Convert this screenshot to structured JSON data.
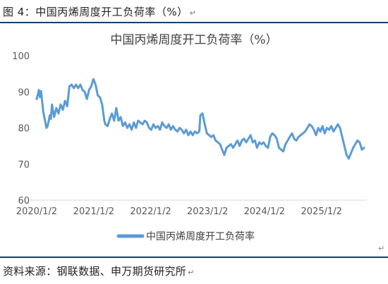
{
  "caption": "图 4：中国丙烯周度开工负荷率（%）",
  "paragraph_mark": "↵",
  "source": "资料来源：钢联数据、申万期货研究所",
  "chart_data": {
    "type": "line",
    "title": "中国丙烯周度开工负荷率（%）",
    "xlabel": "",
    "ylabel": "",
    "ylim": [
      60,
      100
    ],
    "yticks": [
      60,
      70,
      80,
      90,
      100
    ],
    "xticks": [
      {
        "label": "2020/1/2",
        "date": "2020-01-02"
      },
      {
        "label": "2021/1/2",
        "date": "2021-01-02"
      },
      {
        "label": "2022/1/2",
        "date": "2022-01-02"
      },
      {
        "label": "2023/1/2",
        "date": "2023-01-02"
      },
      {
        "label": "2024/1/2",
        "date": "2024-01-02"
      },
      {
        "label": "2025/1/2",
        "date": "2025-01-02"
      }
    ],
    "xlim": [
      "2020-01-02",
      "2025-10-20"
    ],
    "grid": false,
    "legend": "bottom",
    "color": "#5b9bd5",
    "series": [
      {
        "name": "中国丙烯周度开工负荷率",
        "points": [
          [
            "2020-01-02",
            88.0
          ],
          [
            "2020-01-16",
            90.5
          ],
          [
            "2020-01-23",
            88.5
          ],
          [
            "2020-01-30",
            90.2
          ],
          [
            "2020-02-13",
            84.5
          ],
          [
            "2020-02-20",
            83.0
          ],
          [
            "2020-03-05",
            80.0
          ],
          [
            "2020-03-12",
            80.5
          ],
          [
            "2020-03-26",
            83.5
          ],
          [
            "2020-04-02",
            82.5
          ],
          [
            "2020-04-09",
            86.5
          ],
          [
            "2020-04-23",
            83.0
          ],
          [
            "2020-05-07",
            85.5
          ],
          [
            "2020-05-21",
            84.0
          ],
          [
            "2020-06-04",
            86.5
          ],
          [
            "2020-06-18",
            85.0
          ],
          [
            "2020-07-02",
            87.5
          ],
          [
            "2020-07-16",
            86.0
          ],
          [
            "2020-07-30",
            91.5
          ],
          [
            "2020-08-13",
            92.0
          ],
          [
            "2020-08-27",
            91.0
          ],
          [
            "2020-09-10",
            92.0
          ],
          [
            "2020-09-24",
            91.0
          ],
          [
            "2020-10-08",
            92.0
          ],
          [
            "2020-10-22",
            90.5
          ],
          [
            "2020-11-05",
            90.0
          ],
          [
            "2020-11-19",
            88.0
          ],
          [
            "2020-12-03",
            90.5
          ],
          [
            "2020-12-17",
            91.5
          ],
          [
            "2020-12-31",
            93.5
          ],
          [
            "2021-01-14",
            92.0
          ],
          [
            "2021-01-28",
            89.0
          ],
          [
            "2021-02-11",
            88.5
          ],
          [
            "2021-02-25",
            86.5
          ],
          [
            "2021-03-11",
            82.0
          ],
          [
            "2021-03-18",
            81.0
          ],
          [
            "2021-04-01",
            80.5
          ],
          [
            "2021-04-15",
            82.5
          ],
          [
            "2021-04-29",
            84.0
          ],
          [
            "2021-05-13",
            82.0
          ],
          [
            "2021-05-27",
            85.5
          ],
          [
            "2021-06-10",
            82.0
          ],
          [
            "2021-06-24",
            83.0
          ],
          [
            "2021-07-08",
            80.5
          ],
          [
            "2021-07-22",
            81.5
          ],
          [
            "2021-08-05",
            80.0
          ],
          [
            "2021-08-19",
            81.0
          ],
          [
            "2021-09-02",
            79.5
          ],
          [
            "2021-09-16",
            81.5
          ],
          [
            "2021-09-30",
            80.0
          ],
          [
            "2021-10-14",
            82.0
          ],
          [
            "2021-10-28",
            81.5
          ],
          [
            "2021-11-11",
            81.0
          ],
          [
            "2021-11-25",
            82.0
          ],
          [
            "2021-12-09",
            81.5
          ],
          [
            "2021-12-23",
            80.0
          ],
          [
            "2022-01-06",
            79.5
          ],
          [
            "2022-01-20",
            81.0
          ],
          [
            "2022-02-03",
            80.0
          ],
          [
            "2022-02-17",
            80.5
          ],
          [
            "2022-03-03",
            79.5
          ],
          [
            "2022-03-17",
            81.5
          ],
          [
            "2022-03-31",
            80.5
          ],
          [
            "2022-04-14",
            80.0
          ],
          [
            "2022-04-28",
            81.0
          ],
          [
            "2022-05-12",
            79.5
          ],
          [
            "2022-05-26",
            80.5
          ],
          [
            "2022-06-09",
            79.5
          ],
          [
            "2022-06-23",
            79.0
          ],
          [
            "2022-07-07",
            80.0
          ],
          [
            "2022-07-21",
            79.5
          ],
          [
            "2022-08-04",
            78.5
          ],
          [
            "2022-08-18",
            79.5
          ],
          [
            "2022-09-01",
            78.0
          ],
          [
            "2022-09-15",
            79.0
          ],
          [
            "2022-09-29",
            78.0
          ],
          [
            "2022-10-13",
            79.0
          ],
          [
            "2022-10-27",
            78.5
          ],
          [
            "2022-11-10",
            79.0
          ],
          [
            "2022-11-17",
            83.5
          ],
          [
            "2022-12-01",
            84.0
          ],
          [
            "2022-12-15",
            81.0
          ],
          [
            "2022-12-29",
            78.5
          ],
          [
            "2023-01-12",
            78.0
          ],
          [
            "2023-01-26",
            77.5
          ],
          [
            "2023-02-09",
            78.0
          ],
          [
            "2023-02-23",
            76.5
          ],
          [
            "2023-03-09",
            76.0
          ],
          [
            "2023-03-23",
            75.5
          ],
          [
            "2023-04-06",
            74.0
          ],
          [
            "2023-04-20",
            72.5
          ],
          [
            "2023-05-04",
            74.5
          ],
          [
            "2023-05-18",
            75.0
          ],
          [
            "2023-06-01",
            75.5
          ],
          [
            "2023-06-15",
            74.5
          ],
          [
            "2023-06-29",
            75.5
          ],
          [
            "2023-07-13",
            76.5
          ],
          [
            "2023-07-27",
            75.0
          ],
          [
            "2023-08-10",
            76.5
          ],
          [
            "2023-08-24",
            77.0
          ],
          [
            "2023-09-07",
            76.0
          ],
          [
            "2023-09-21",
            77.0
          ],
          [
            "2023-10-05",
            78.0
          ],
          [
            "2023-10-19",
            76.0
          ],
          [
            "2023-11-02",
            76.5
          ],
          [
            "2023-11-16",
            74.5
          ],
          [
            "2023-11-30",
            76.0
          ],
          [
            "2023-12-14",
            75.5
          ],
          [
            "2023-12-28",
            76.0
          ],
          [
            "2024-01-11",
            75.0
          ],
          [
            "2024-01-25",
            74.5
          ],
          [
            "2024-02-08",
            77.5
          ],
          [
            "2024-02-22",
            78.5
          ],
          [
            "2024-03-07",
            78.0
          ],
          [
            "2024-03-21",
            77.0
          ],
          [
            "2024-04-04",
            74.5
          ],
          [
            "2024-04-18",
            74.0
          ],
          [
            "2024-05-02",
            73.5
          ],
          [
            "2024-05-16",
            75.5
          ],
          [
            "2024-05-30",
            76.5
          ],
          [
            "2024-06-13",
            77.5
          ],
          [
            "2024-06-27",
            78.5
          ],
          [
            "2024-07-11",
            77.0
          ],
          [
            "2024-07-25",
            76.5
          ],
          [
            "2024-08-08",
            77.5
          ],
          [
            "2024-08-22",
            78.0
          ],
          [
            "2024-09-05",
            78.5
          ],
          [
            "2024-09-19",
            79.0
          ],
          [
            "2024-10-03",
            80.0
          ],
          [
            "2024-10-17",
            81.0
          ],
          [
            "2024-10-31",
            80.5
          ],
          [
            "2024-11-14",
            79.5
          ],
          [
            "2024-11-28",
            78.0
          ],
          [
            "2024-12-12",
            80.0
          ],
          [
            "2024-12-26",
            79.0
          ],
          [
            "2025-01-09",
            80.5
          ],
          [
            "2025-01-23",
            78.5
          ],
          [
            "2025-02-06",
            80.0
          ],
          [
            "2025-02-20",
            79.5
          ],
          [
            "2025-03-06",
            80.5
          ],
          [
            "2025-03-20",
            79.0
          ],
          [
            "2025-04-03",
            80.0
          ],
          [
            "2025-04-17",
            81.0
          ],
          [
            "2025-05-01",
            80.0
          ],
          [
            "2025-05-15",
            77.5
          ],
          [
            "2025-05-29",
            75.0
          ],
          [
            "2025-06-12",
            72.5
          ],
          [
            "2025-06-26",
            71.5
          ],
          [
            "2025-07-10",
            73.0
          ],
          [
            "2025-07-24",
            74.5
          ],
          [
            "2025-08-07",
            75.5
          ],
          [
            "2025-08-21",
            76.5
          ],
          [
            "2025-09-04",
            76.0
          ],
          [
            "2025-09-18",
            74.0
          ],
          [
            "2025-10-02",
            74.5
          ]
        ]
      }
    ]
  }
}
